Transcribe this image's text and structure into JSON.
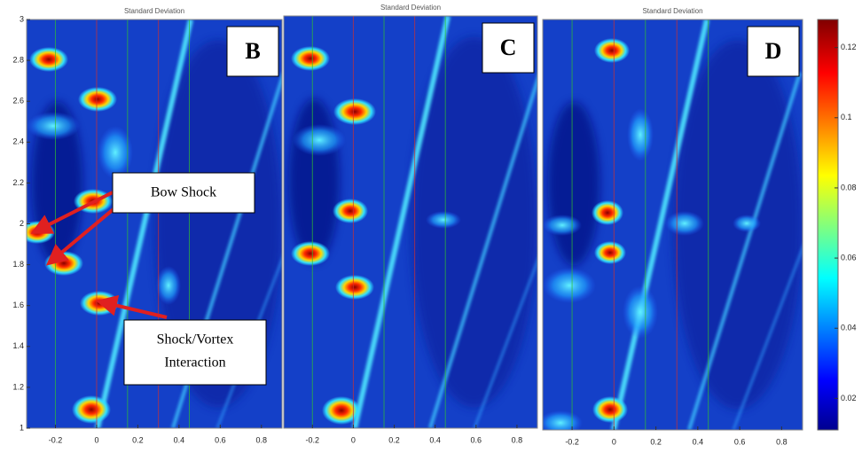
{
  "chart_data": [
    {
      "type": "heatmap",
      "title": "Standard Deviation",
      "label": "B",
      "xlim": [
        -0.34,
        0.9
      ],
      "xticks": [
        -0.2,
        0,
        0.2,
        0.4,
        0.6,
        0.8
      ],
      "ylim": [
        1,
        3
      ],
      "yticks": [
        1,
        1.2,
        1.4,
        1.6,
        1.8,
        2,
        2.2,
        2.4,
        2.6,
        2.8,
        3
      ]
    },
    {
      "type": "heatmap",
      "title": "Standard Deviation",
      "label": "C",
      "xlim": [
        -0.34,
        0.9
      ],
      "xticks": [
        -0.2,
        0,
        0.2,
        0.4,
        0.6,
        0.8
      ]
    },
    {
      "type": "heatmap",
      "title": "Standard Deviation",
      "label": "D",
      "xlim": [
        -0.34,
        0.9
      ],
      "xticks": [
        -0.2,
        0,
        0.2,
        0.4,
        0.6,
        0.8
      ],
      "colorbar": {
        "clim": [
          0.011,
          0.128
        ],
        "ticks": [
          0.02,
          0.04,
          0.06,
          0.08,
          0.1,
          0.12
        ]
      }
    }
  ],
  "annotations": [
    {
      "text": "Bow Shock"
    },
    {
      "lines": [
        "Shock/Vortex",
        "Interaction"
      ]
    }
  ]
}
